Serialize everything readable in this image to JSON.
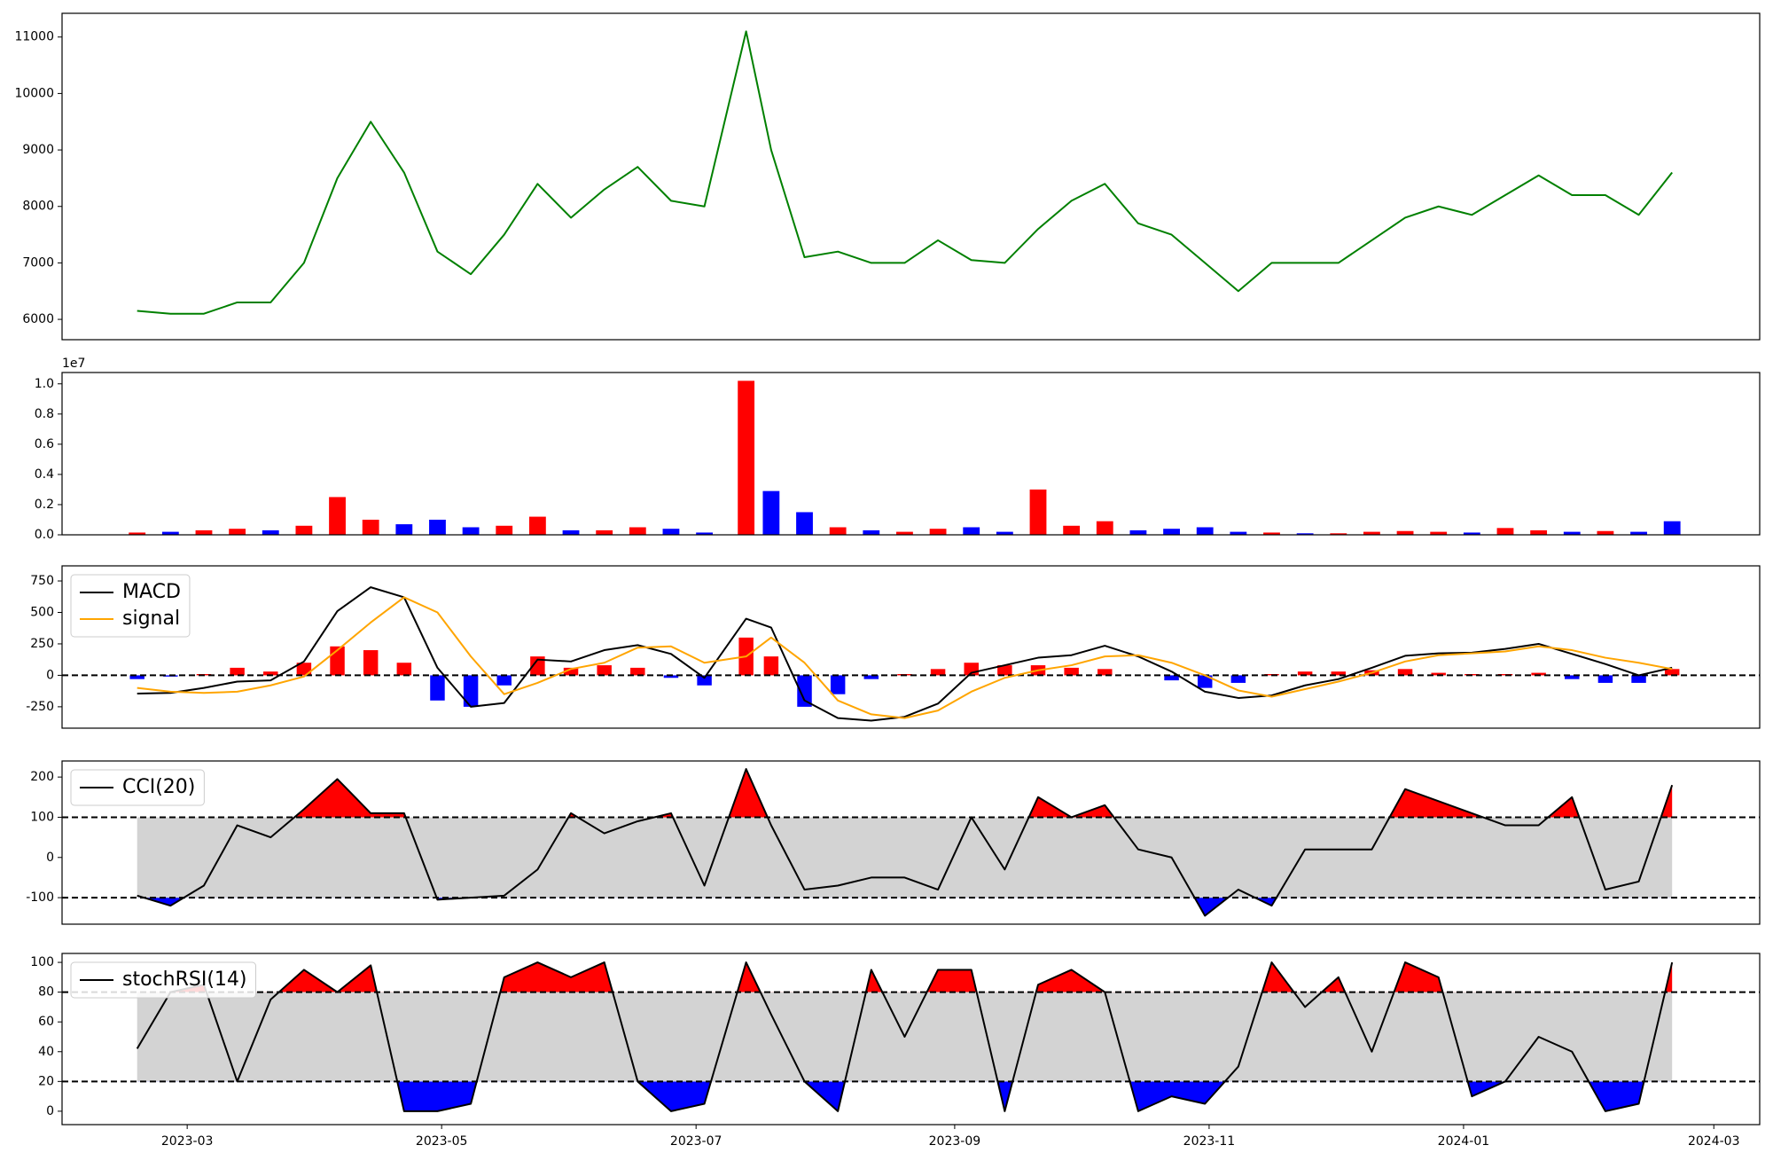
{
  "chart_data": [
    {
      "type": "line",
      "xlim": [
        -30,
        377
      ],
      "x": [
        -12,
        -4,
        4,
        12,
        20,
        28,
        36,
        44,
        52,
        60,
        68,
        76,
        84,
        92,
        100,
        108,
        116,
        124,
        134,
        140,
        148,
        156,
        164,
        172,
        180,
        188,
        196,
        204,
        212,
        220,
        228,
        236,
        244,
        252,
        260,
        268,
        276,
        284,
        292,
        300,
        308,
        316,
        324,
        332,
        340,
        348,
        356
      ],
      "series": [
        {
          "color": "#008000",
          "values": [
            6150,
            6100,
            6100,
            6300,
            6300,
            7000,
            8500,
            9500,
            8600,
            7200,
            6800,
            7500,
            8400,
            7800,
            8300,
            8700,
            8100,
            8000,
            11100,
            9000,
            7100,
            7200,
            7000,
            7000,
            7400,
            7050,
            7000,
            7600,
            8100,
            8400,
            7700,
            7500,
            7000,
            6500,
            7000,
            7000,
            7000,
            7400,
            7800,
            8000,
            7850,
            8200,
            8550,
            8200,
            8200,
            7850,
            8600
          ]
        }
      ],
      "ylim": [
        5640,
        11420
      ],
      "yticks": [
        6000,
        7000,
        8000,
        9000,
        10000,
        11000
      ]
    },
    {
      "type": "bar",
      "xlim": [
        -30,
        377
      ],
      "x": [
        -12,
        -4,
        4,
        12,
        20,
        28,
        36,
        44,
        52,
        60,
        68,
        76,
        84,
        92,
        100,
        108,
        116,
        124,
        134,
        140,
        148,
        156,
        164,
        172,
        180,
        188,
        196,
        204,
        212,
        220,
        228,
        236,
        244,
        252,
        260,
        268,
        276,
        284,
        292,
        300,
        308,
        316,
        324,
        332,
        340,
        348,
        356
      ],
      "values": [
        150000,
        200000,
        300000,
        400000,
        300000,
        600000,
        2500000,
        1000000,
        700000,
        1000000,
        500000,
        600000,
        1200000,
        300000,
        300000,
        500000,
        400000,
        150000,
        10200000,
        2900000,
        1500000,
        500000,
        300000,
        200000,
        400000,
        500000,
        200000,
        3000000,
        600000,
        900000,
        300000,
        400000,
        500000,
        200000,
        150000,
        100000,
        100000,
        200000,
        250000,
        200000,
        150000,
        450000,
        300000,
        200000,
        250000,
        200000,
        900000
      ],
      "bar_colors": [
        "red",
        "blue",
        "red",
        "red",
        "blue",
        "red",
        "red",
        "red",
        "blue",
        "blue",
        "blue",
        "red",
        "red",
        "blue",
        "red",
        "red",
        "blue",
        "blue",
        "red",
        "blue",
        "blue",
        "red",
        "blue",
        "red",
        "red",
        "blue",
        "blue",
        "red",
        "red",
        "red",
        "blue",
        "blue",
        "blue",
        "blue",
        "red",
        "blue",
        "red",
        "red",
        "red",
        "red",
        "blue",
        "red",
        "red",
        "blue",
        "red",
        "blue",
        "blue"
      ],
      "ylim": [
        0,
        10750000
      ],
      "yticks": [
        {
          "value": 0,
          "label": "0.0"
        },
        {
          "value": 2000000,
          "label": "0.2"
        },
        {
          "value": 4000000,
          "label": "0.4"
        },
        {
          "value": 6000000,
          "label": "0.6"
        },
        {
          "value": 8000000,
          "label": "0.8"
        },
        {
          "value": 10000000,
          "label": "1.0"
        }
      ],
      "offset_label": "1e7"
    },
    {
      "type": "line",
      "xlim": [
        -30,
        377
      ],
      "x": [
        -12,
        -4,
        4,
        12,
        20,
        28,
        36,
        44,
        52,
        60,
        68,
        76,
        84,
        92,
        100,
        108,
        116,
        124,
        134,
        140,
        148,
        156,
        164,
        172,
        180,
        188,
        196,
        204,
        212,
        220,
        228,
        236,
        244,
        252,
        260,
        268,
        276,
        284,
        292,
        300,
        308,
        316,
        324,
        332,
        340,
        348,
        356
      ],
      "histogram": {
        "up_color": "red",
        "down_color": "blue",
        "values": [
          -30,
          -10,
          10,
          60,
          30,
          100,
          230,
          200,
          100,
          -200,
          -250,
          -80,
          150,
          60,
          80,
          60,
          -20,
          -80,
          300,
          150,
          -250,
          -150,
          -30,
          10,
          50,
          100,
          80,
          80,
          60,
          50,
          0,
          -40,
          -100,
          -60,
          10,
          30,
          30,
          40,
          50,
          20,
          10,
          10,
          20,
          -30,
          -60,
          -60,
          50
        ]
      },
      "series": [
        {
          "name": "MACD",
          "color": "#000000",
          "values": [
            -145,
            -140,
            -100,
            -50,
            -40,
            110,
            510,
            700,
            620,
            60,
            -250,
            -220,
            125,
            110,
            200,
            240,
            170,
            -20,
            450,
            380,
            -200,
            -340,
            -360,
            -330,
            -225,
            20,
            80,
            140,
            160,
            235,
            150,
            30,
            -130,
            -180,
            -160,
            -80,
            -30,
            60,
            155,
            175,
            180,
            210,
            250,
            170,
            90,
            0,
            60
          ]
        },
        {
          "name": "signal",
          "color": "#ffa500",
          "values": [
            -100,
            -130,
            -140,
            -130,
            -80,
            -10,
            200,
            420,
            620,
            500,
            150,
            -150,
            -60,
            50,
            100,
            220,
            230,
            100,
            150,
            300,
            100,
            -200,
            -310,
            -340,
            -280,
            -130,
            -20,
            40,
            80,
            150,
            160,
            100,
            0,
            -120,
            -170,
            -110,
            -50,
            20,
            110,
            160,
            175,
            190,
            230,
            200,
            140,
            100,
            50
          ]
        }
      ],
      "hlines": [
        0
      ],
      "ylim": [
        -420,
        870
      ],
      "yticks": [
        -250,
        0,
        250,
        500,
        750
      ],
      "legend": "upper left"
    },
    {
      "type": "line",
      "xlim": [
        -30,
        377
      ],
      "x": [
        -12,
        -4,
        4,
        12,
        20,
        28,
        36,
        44,
        52,
        60,
        68,
        76,
        84,
        92,
        100,
        108,
        116,
        124,
        134,
        140,
        148,
        156,
        164,
        172,
        180,
        188,
        196,
        204,
        212,
        220,
        228,
        236,
        244,
        252,
        260,
        268,
        276,
        284,
        292,
        300,
        308,
        316,
        324,
        332,
        340,
        348,
        356
      ],
      "series": [
        {
          "name": "CCI(20)",
          "color": "#000000",
          "values": [
            -95,
            -120,
            -70,
            80,
            50,
            120,
            195,
            110,
            110,
            -105,
            -100,
            -95,
            -30,
            110,
            60,
            90,
            110,
            -70,
            220,
            80,
            -80,
            -70,
            -50,
            -50,
            -80,
            100,
            -30,
            150,
            100,
            130,
            20,
            0,
            -145,
            -80,
            -120,
            20,
            20,
            20,
            170,
            140,
            110,
            80,
            80,
            150,
            -80,
            -60,
            180
          ]
        }
      ],
      "hlines": [
        -100,
        100
      ],
      "band_fill": "#d3d3d3",
      "above_color": "red",
      "below_color": "blue",
      "ylim": [
        -166,
        240
      ],
      "yticks": [
        -100,
        0,
        100,
        200
      ],
      "legend": "upper left"
    },
    {
      "type": "line",
      "xlim": [
        -30,
        377
      ],
      "x": [
        -12,
        -4,
        4,
        12,
        20,
        28,
        36,
        44,
        52,
        60,
        68,
        76,
        84,
        92,
        100,
        108,
        116,
        124,
        134,
        140,
        148,
        156,
        164,
        172,
        180,
        188,
        196,
        204,
        212,
        220,
        228,
        236,
        244,
        252,
        260,
        268,
        276,
        284,
        292,
        300,
        308,
        316,
        324,
        332,
        340,
        348,
        356
      ],
      "series": [
        {
          "name": "stochRSI(14)",
          "color": "#000000",
          "values": [
            42,
            80,
            85,
            20,
            75,
            95,
            80,
            98,
            0,
            0,
            5,
            90,
            100,
            90,
            100,
            20,
            0,
            5,
            100,
            65,
            20,
            0,
            95,
            50,
            95,
            95,
            0,
            85,
            95,
            80,
            0,
            10,
            5,
            30,
            100,
            70,
            90,
            40,
            100,
            90,
            10,
            20,
            50,
            40,
            0,
            5,
            100
          ]
        }
      ],
      "hlines": [
        20,
        80
      ],
      "band_fill": "#d3d3d3",
      "above_color": "red",
      "below_color": "blue",
      "ylim": [
        -9,
        106
      ],
      "yticks": [
        0,
        20,
        40,
        60,
        80,
        100
      ],
      "legend": "upper left",
      "xticks": [
        {
          "value": 0,
          "label": "2023-03"
        },
        {
          "value": 61,
          "label": "2023-05"
        },
        {
          "value": 122,
          "label": "2023-07"
        },
        {
          "value": 184,
          "label": "2023-09"
        },
        {
          "value": 245,
          "label": "2023-11"
        },
        {
          "value": 306,
          "label": "2024-01"
        },
        {
          "value": 366,
          "label": "2024-03"
        }
      ]
    }
  ]
}
